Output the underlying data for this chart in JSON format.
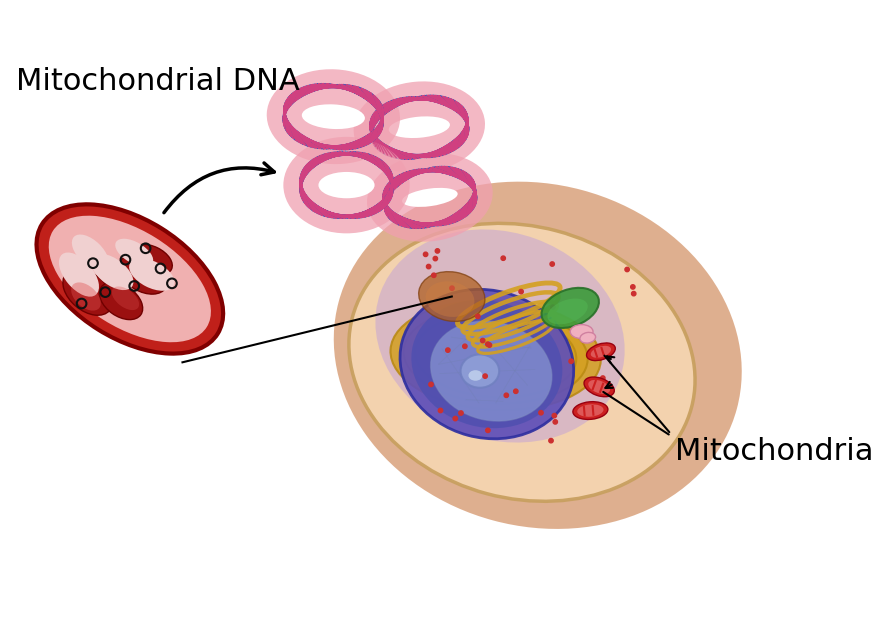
{
  "title": "",
  "label_mitochondria": "Mitochondria",
  "label_mito_dna": "Mitochondrial DNA",
  "bg_color": "#ffffff",
  "cell_outer_color": "#d4956a",
  "cell_inner_bg": "#f5d5b0",
  "cell_membrane_color": "#c8a060",
  "nucleus_outer_color": "#7060c0",
  "nucleus_inner_color": "#5050b0",
  "nucleolus_color": "#8090c8",
  "mito_outer_color": "#c0201a",
  "mito_inner_color": "#f0b0b0",
  "mito_cristae_color": "#9b1010",
  "dna_ring_fill": "#f0a0b0",
  "dna_strand1_color": "#3060c0",
  "dna_strand2_color": "#d04080",
  "arrow_color": "#111111"
}
